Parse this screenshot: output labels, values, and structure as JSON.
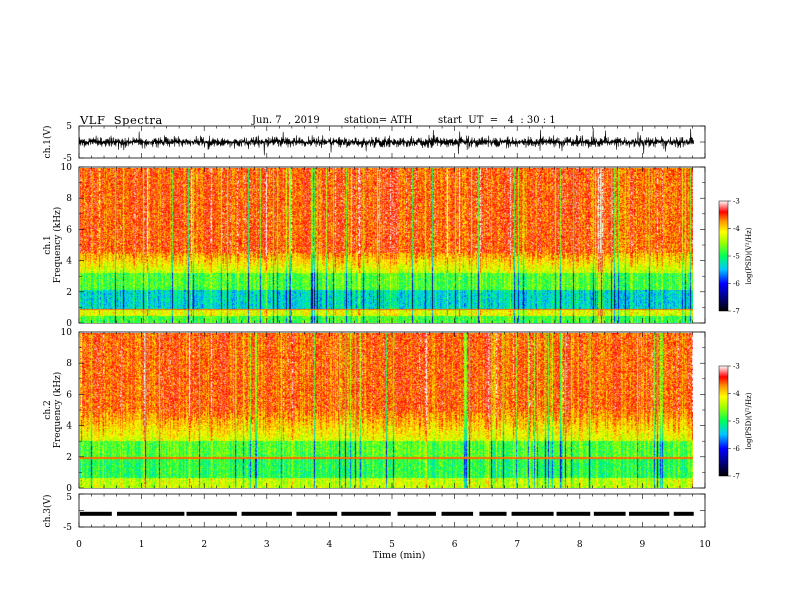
{
  "header": {
    "title": "VLF  Spectra",
    "date": "Jun. 7  , 2019",
    "station": "station= ATH",
    "start": "start  UT  =   4  : 30 : 1"
  },
  "chart_data": [
    {
      "type": "line",
      "name": "ch1-waveform",
      "ylabel": "ch.1(V)",
      "ylim": [
        -5,
        5
      ],
      "yticks": [
        "5",
        "-5"
      ],
      "xlim": [
        0,
        10
      ],
      "description_values": {
        "mean": 0,
        "typical_amplitude": 1.5,
        "peak_amplitude": 4.5
      }
    },
    {
      "type": "heatmap",
      "name": "ch1-spectrogram",
      "ylabel_line1": "ch.1",
      "ylabel_line2": "Frequency  (kHz)",
      "ylim": [
        0,
        10
      ],
      "yticks": [
        "0",
        "2",
        "4",
        "6",
        "8",
        "10"
      ],
      "xlim": [
        0,
        9.8
      ],
      "colorbar": {
        "label": "log(PSD)(V²/Hz)",
        "range": [
          -7,
          -3
        ],
        "ticks": [
          "-3",
          "-4",
          "-5",
          "-6",
          "-7"
        ]
      }
    },
    {
      "type": "heatmap",
      "name": "ch2-spectrogram",
      "ylabel_line1": "ch.2",
      "ylabel_line2": "Frequency  (kHz)",
      "ylim": [
        0,
        10
      ],
      "yticks": [
        "0",
        "2",
        "4",
        "6",
        "8",
        "10"
      ],
      "xlim": [
        0,
        9.8
      ],
      "colorbar": {
        "label": "log(PSD)(V²/Hz)",
        "range": [
          -7,
          -3
        ],
        "ticks": [
          "-3",
          "-4",
          "-5",
          "-6",
          "-7"
        ]
      }
    },
    {
      "type": "line",
      "name": "ch3-signal",
      "ylabel": "ch.3(V)",
      "ylim": [
        -5,
        5
      ],
      "yticks": [
        "5",
        "-5"
      ],
      "xlim": [
        0,
        10
      ],
      "level": -1.0
    }
  ],
  "xaxis": {
    "label": "Time  (min)",
    "ticks": [
      "0",
      "1",
      "2",
      "3",
      "4",
      "5",
      "6",
      "7",
      "8",
      "9",
      "10"
    ]
  }
}
